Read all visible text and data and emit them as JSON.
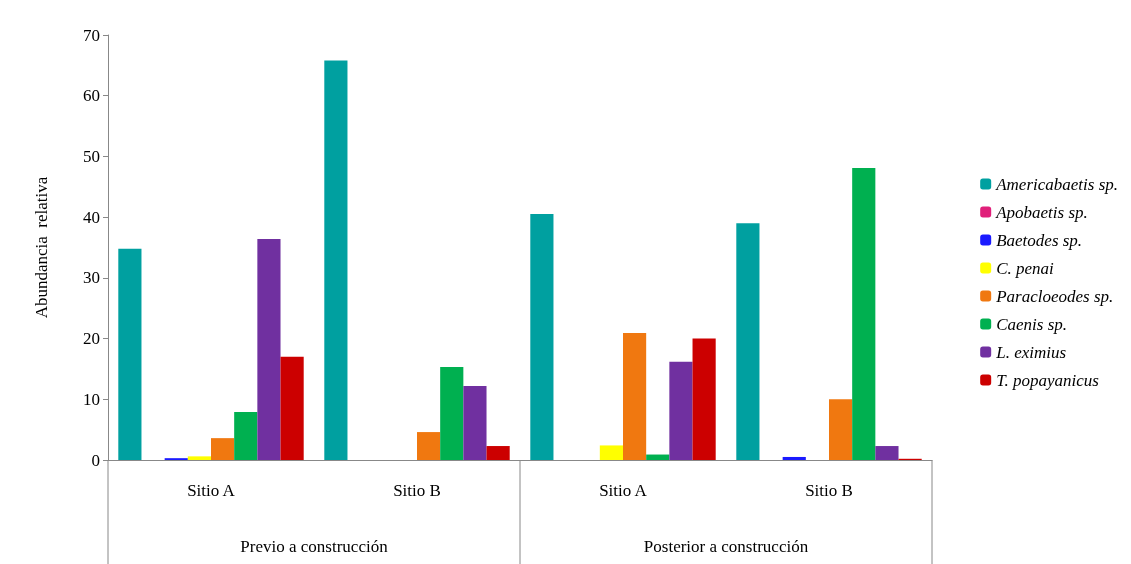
{
  "chart_data": {
    "type": "bar",
    "ylabel": "Abundancia  relativa",
    "categories": [
      "Sitio A",
      "Sitio B",
      "Sitio A",
      "Sitio B"
    ],
    "annotations": [
      "Previo a construcción",
      "Posterior a construcción"
    ],
    "series": [
      {
        "name": "Americabaetis sp.",
        "color": "#00a0a0",
        "values": [
          34.8,
          65.8,
          40.5,
          39.0
        ]
      },
      {
        "name": "Apobaetis sp.",
        "color": "#e0207a",
        "values": [
          0,
          0,
          0,
          0
        ]
      },
      {
        "name": "Baetodes sp.",
        "color": "#1a1aff",
        "values": [
          0.3,
          0,
          0,
          0.5
        ]
      },
      {
        "name": "C. penai",
        "color": "#ffff00",
        "values": [
          0.6,
          0,
          2.4,
          0
        ]
      },
      {
        "name": "Paracloeodes sp.",
        "color": "#f07810",
        "values": [
          3.6,
          4.6,
          20.9,
          10.0
        ]
      },
      {
        "name": "Caenis sp.",
        "color": "#00b050",
        "values": [
          7.9,
          15.3,
          0.9,
          48.1
        ]
      },
      {
        "name": "L. eximius",
        "color": "#7030a0",
        "values": [
          36.4,
          12.2,
          16.2,
          2.3
        ]
      },
      {
        "name": "T. popayanicus",
        "color": "#cc0000",
        "values": [
          17.0,
          2.3,
          20.0,
          0.2
        ]
      }
    ],
    "ylim": [
      0,
      70
    ],
    "yticks": [
      0,
      10,
      20,
      30,
      40,
      50,
      60,
      70
    ],
    "grid": false,
    "legend": "right"
  }
}
